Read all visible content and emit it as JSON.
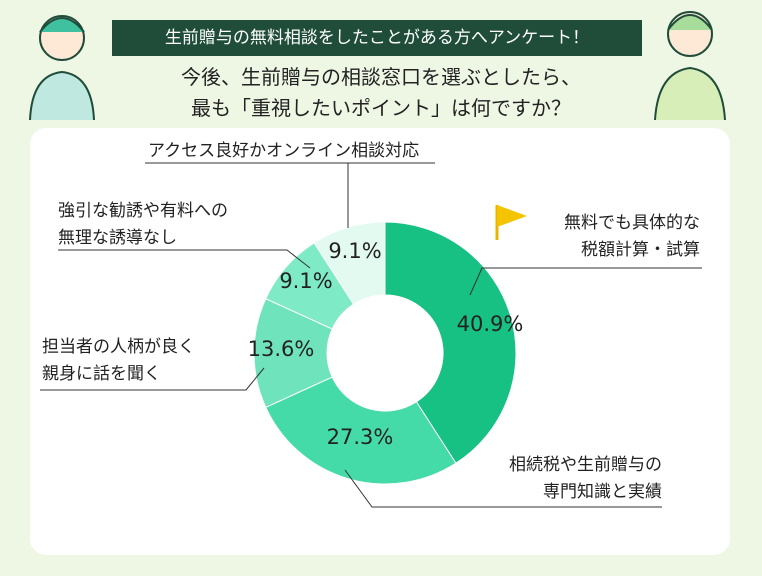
{
  "chart_data": {
    "type": "donut",
    "title": "生前贈与の無料相談をしたことがある方へアンケート！",
    "subtitle": "今後、生前贈与の相談窓口を選ぶとしたら、\n最も「重視したいポイント」は何ですか？",
    "categories": [
      "無料でも具体的な\n税額計算・試算",
      "相続税や生前贈与の\n専門知識と実績",
      "担当者の人柄が良く\n親身に話を聞く",
      "強引な勧誘や有料への\n無理な誘導なし",
      "アクセス良好かオンライン相談対応"
    ],
    "values": [
      40.9,
      27.3,
      13.6,
      9.1,
      9.1
    ],
    "value_labels": [
      "40.9%",
      "27.3%",
      "13.6%",
      "9.1%",
      "9.1%"
    ],
    "colors": [
      "#17c083",
      "#45dba8",
      "#6fe3bc",
      "#7eeac6",
      "#e3faf1"
    ]
  }
}
